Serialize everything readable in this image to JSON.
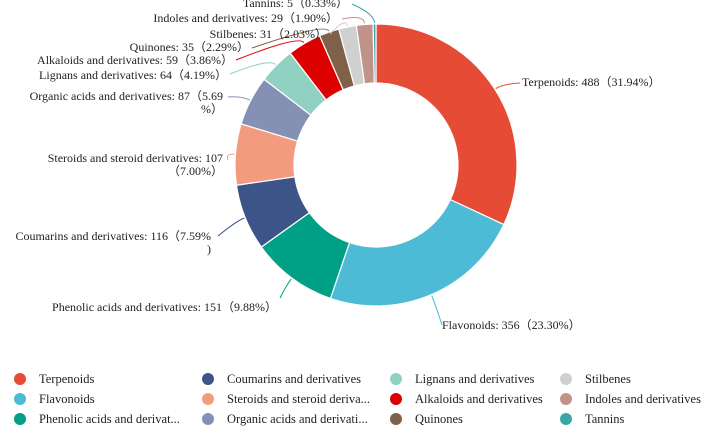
{
  "chart_data": {
    "type": "pie",
    "donut": true,
    "title": "",
    "categories": [
      "Terpenoids",
      "Flavonoids",
      "Phenolic acids and derivatives",
      "Coumarins and derivatives",
      "Steroids and steroid derivatives",
      "Organic acids and derivatives",
      "Lignans and derivatives",
      "Alkaloids and derivatives",
      "Quinones",
      "Stilbenes",
      "Indoles and derivatives",
      "Tannins"
    ],
    "values": [
      488,
      356,
      151,
      116,
      107,
      87,
      64,
      59,
      35,
      31,
      29,
      5
    ],
    "percents": [
      "31.94%",
      "23.30%",
      "9.88%",
      "7.59%",
      "7.00%",
      "5.69%",
      "4.19%",
      "3.86%",
      "2.29%",
      "2.03%",
      "1.90%",
      "0.33%"
    ],
    "colors": [
      "#E64B35",
      "#4DBBD5",
      "#00A087",
      "#3C5488",
      "#F39B7F",
      "#8491B4",
      "#91D1C2",
      "#DC0000",
      "#7E6148",
      "#D0D0D0",
      "#C1928A",
      "#3AA6A8"
    ],
    "data_labels": [
      [
        "Terpenoids: 488（31.94%）"
      ],
      [
        "Flavonoids: 356（23.30%）"
      ],
      [
        "Phenolic acids and derivatives: 151（9.88%）"
      ],
      [
        "Coumarins and derivatives: 116（7.59%",
        ")"
      ],
      [
        "Steroids and steroid derivatives: 107",
        "（7.00%）"
      ],
      [
        "Organic acids and derivatives: 87（5.69",
        "%）"
      ],
      [
        "Lignans and derivatives: 64（4.19%）"
      ],
      [
        "Alkaloids and derivatives: 59（3.86%）"
      ],
      [
        "Quinones: 35（2.29%）"
      ],
      [
        "Stilbenes: 31（2.03%）"
      ],
      [
        "Indoles and derivatives: 29（1.90%）"
      ],
      [
        "Tannins: 5（0.33%）"
      ]
    ],
    "legend": {
      "position": "bottom",
      "items": [
        "Terpenoids",
        "Flavonoids",
        "Phenolic acids and derivat...",
        "Coumarins and derivatives",
        "Steroids and steroid deriva...",
        "Organic acids and derivati...",
        "Lignans and derivatives",
        "Alkaloids and derivatives",
        "Quinones",
        "Stilbenes",
        "Indoles and derivatives",
        "Tannins"
      ]
    }
  }
}
